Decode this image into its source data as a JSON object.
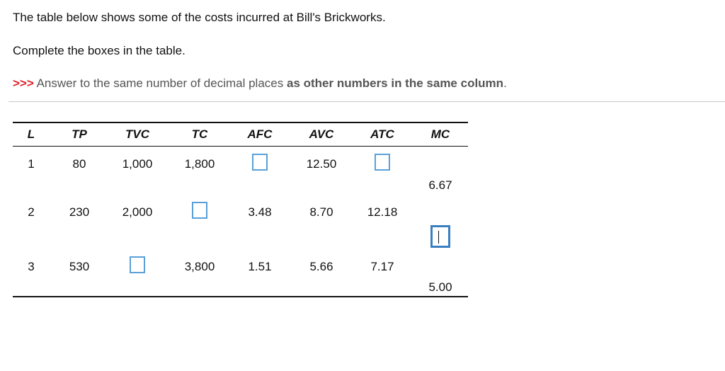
{
  "intro": "The table below shows some of the costs incurred at Bill's Brickworks.",
  "instruction": "Complete the boxes in the table.",
  "hint": {
    "marker": ">>>",
    "text": " Answer to the same number of decimal places ",
    "bold": "as other numbers in the same column",
    "end": "."
  },
  "table": {
    "headers": [
      "L",
      "TP",
      "TVC",
      "TC",
      "AFC",
      "AVC",
      "ATC",
      "MC"
    ],
    "rows": [
      {
        "L": "1",
        "TP": "80",
        "TVC": "1,000",
        "TC": "1,800",
        "AFC": "",
        "AVC": "12.50",
        "ATC": ""
      },
      {
        "L": "2",
        "TP": "230",
        "TVC": "2,000",
        "TC": "",
        "AFC": "3.48",
        "AVC": "8.70",
        "ATC": "12.18"
      },
      {
        "L": "3",
        "TP": "530",
        "TVC": "",
        "TC": "3,800",
        "AFC": "1.51",
        "AVC": "5.66",
        "ATC": "7.17"
      }
    ],
    "mc": [
      "6.67",
      "",
      "5.00"
    ]
  }
}
